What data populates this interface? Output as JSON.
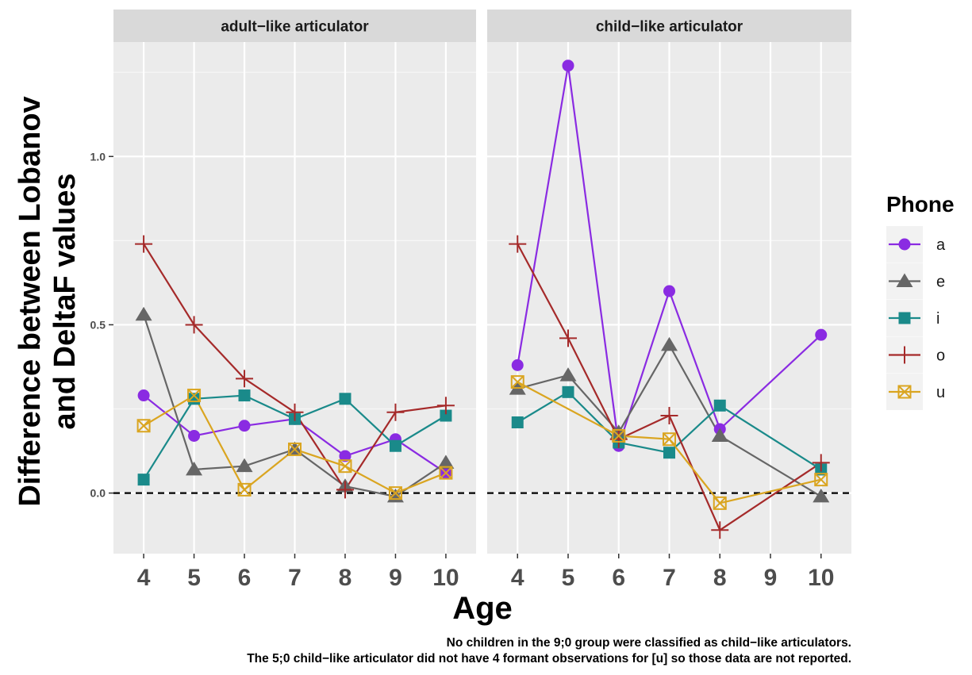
{
  "chart_data": {
    "type": "line",
    "x_label": "Age",
    "y_label_lines": [
      "Difference between Lobanov",
      "and DeltaF values"
    ],
    "x_ticks": [
      "4",
      "5",
      "6",
      "7",
      "8",
      "9",
      "10"
    ],
    "y_ticks": [
      0.0,
      0.5,
      1.0
    ],
    "y_tick_labels": [
      "0.0",
      "0.5",
      "1.0"
    ],
    "ylim": [
      -0.18,
      1.34
    ],
    "reference_line": {
      "y": 0,
      "style": "dashed"
    },
    "legend": {
      "title": "Phone",
      "position": "right"
    },
    "series_styles": [
      {
        "name": "a",
        "color": "#8A2BE2",
        "marker": "circle"
      },
      {
        "name": "e",
        "color": "#666666",
        "marker": "triangle"
      },
      {
        "name": "i",
        "color": "#1A8A8A",
        "marker": "square"
      },
      {
        "name": "o",
        "color": "#A52A2A",
        "marker": "plus"
      },
      {
        "name": "u",
        "color": "#DAA520",
        "marker": "boxed-x"
      }
    ],
    "panels": [
      {
        "title": "adult−like articulator",
        "x": [
          4,
          5,
          6,
          7,
          8,
          9,
          10
        ],
        "series": [
          {
            "name": "a",
            "values": [
              0.29,
              0.17,
              0.2,
              0.22,
              0.11,
              0.16,
              0.06
            ]
          },
          {
            "name": "e",
            "values": [
              0.53,
              0.07,
              0.08,
              0.13,
              0.02,
              -0.01,
              0.09
            ]
          },
          {
            "name": "i",
            "values": [
              0.04,
              0.28,
              0.29,
              0.22,
              0.28,
              0.14,
              0.23
            ]
          },
          {
            "name": "o",
            "values": [
              0.74,
              0.5,
              0.34,
              0.24,
              0.01,
              0.24,
              0.26
            ]
          },
          {
            "name": "u",
            "values": [
              0.2,
              0.29,
              0.01,
              0.13,
              0.08,
              0.0,
              0.06
            ]
          }
        ]
      },
      {
        "title": "child−like articulator",
        "x": [
          4,
          5,
          6,
          7,
          8,
          10
        ],
        "series": [
          {
            "name": "a",
            "x": [
              4,
              5,
              6,
              7,
              8,
              10
            ],
            "values": [
              0.38,
              1.27,
              0.14,
              0.6,
              0.19,
              0.47
            ]
          },
          {
            "name": "e",
            "x": [
              4,
              5,
              6,
              7,
              8,
              10
            ],
            "values": [
              0.31,
              0.35,
              0.18,
              0.44,
              0.17,
              -0.01
            ]
          },
          {
            "name": "i",
            "x": [
              4,
              5,
              6,
              7,
              8,
              10
            ],
            "values": [
              0.21,
              0.3,
              0.15,
              0.12,
              0.26,
              0.07
            ]
          },
          {
            "name": "o",
            "x": [
              4,
              5,
              6,
              7,
              8,
              10
            ],
            "values": [
              0.74,
              0.46,
              0.16,
              0.23,
              -0.11,
              0.09
            ]
          },
          {
            "name": "u",
            "x": [
              4,
              6,
              7,
              8,
              10
            ],
            "values": [
              0.33,
              0.17,
              0.16,
              -0.03,
              0.04
            ]
          }
        ]
      }
    ],
    "caption_lines": [
      "No children in the 9;0 group were classified as child−like articulators.",
      "The 5;0 child−like articulator did not have 4 formant observations for [u] so those data are not reported."
    ]
  }
}
